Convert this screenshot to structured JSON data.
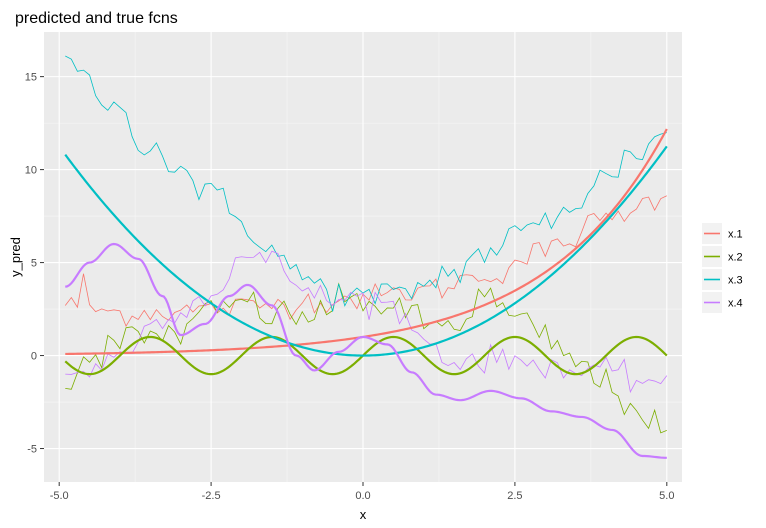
{
  "chart_data": {
    "type": "line",
    "title": "predicted and true fcns",
    "xlabel": "x",
    "ylabel": "y_pred",
    "xlim": [
      -5.25,
      5.25
    ],
    "ylim": [
      -6.8,
      17.4
    ],
    "x_ticks": [
      -5.0,
      -2.5,
      0.0,
      2.5,
      5.0
    ],
    "x_tick_labels": [
      "-5.0",
      "-2.5",
      "0.0",
      "2.5",
      "5.0"
    ],
    "y_ticks": [
      -5,
      0,
      5,
      10,
      15
    ],
    "y_tick_labels": [
      "-5",
      "0",
      "5",
      "10",
      "15"
    ],
    "grid": true,
    "legend_position": "right",
    "series": [
      {
        "name": "x.1",
        "color": "#F8766D"
      },
      {
        "name": "x.2",
        "color": "#7CAE00"
      },
      {
        "name": "x.3",
        "color": "#00BFC4"
      },
      {
        "name": "x.4",
        "color": "#C77CFF"
      }
    ],
    "x_range": [
      -4.9,
      5.0
    ],
    "n_points": 100,
    "smooth_curves": {
      "x.1": "exp(x/2)",
      "x.2": "sin(pi*x)",
      "x.3": "0.45*x^2",
      "x.4": "5*sin(x)/x-ish"
    }
  }
}
